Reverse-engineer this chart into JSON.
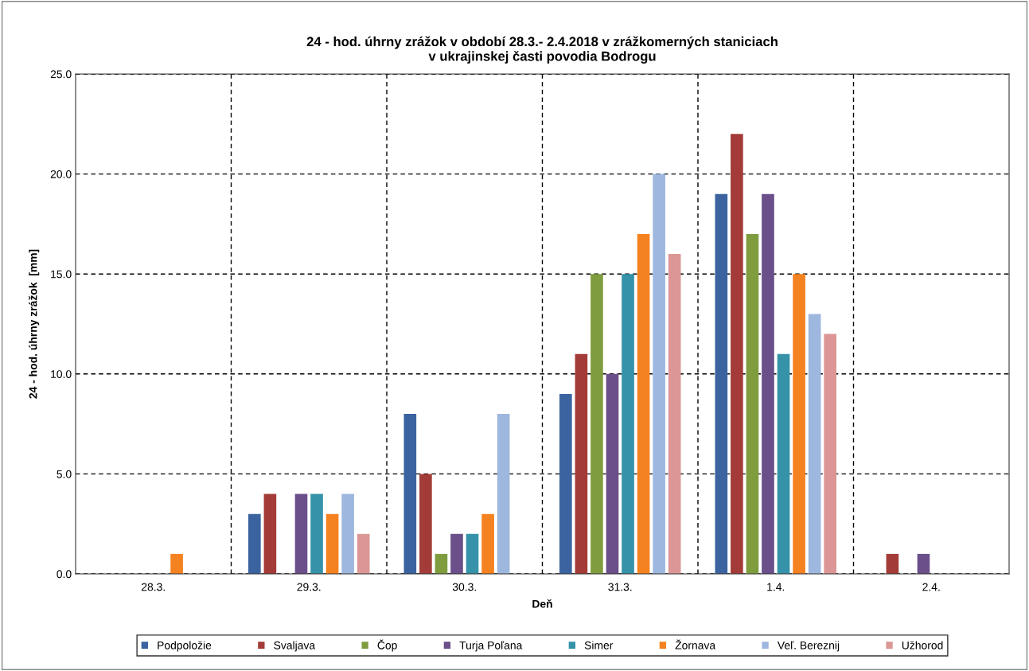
{
  "chart_data": {
    "type": "bar",
    "title": "24 - hod. úhrny zrážok v období 28.3.- 2.4.2018 v zrážkomerných staniciach\nv ukrajinskej časti povodia Bodrogu",
    "xlabel": "Deň",
    "ylabel": "24 - hod. úhrny zrážok  [mm]",
    "categories": [
      "28.3.",
      "29.3.",
      "30.3.",
      "31.3.",
      "1.4.",
      "2.4."
    ],
    "series": [
      {
        "name": "Podpoložie",
        "color": "#3a63a0",
        "values": [
          0,
          3,
          8,
          9,
          19,
          0
        ]
      },
      {
        "name": "Svaljava",
        "color": "#a33c38",
        "values": [
          0,
          4,
          5,
          11,
          22,
          1
        ]
      },
      {
        "name": "Čop",
        "color": "#7f9c3f",
        "values": [
          0,
          0,
          1,
          15,
          17,
          0
        ]
      },
      {
        "name": "Turja Poľana",
        "color": "#6a4f8a",
        "values": [
          0,
          4,
          2,
          10,
          19,
          1
        ]
      },
      {
        "name": "Simer",
        "color": "#3592a8",
        "values": [
          0,
          4,
          2,
          15,
          11,
          0
        ]
      },
      {
        "name": "Žornava",
        "color": "#f58220",
        "values": [
          1,
          3,
          3,
          17,
          15,
          0
        ]
      },
      {
        "name": "Veľ. Bereznij",
        "color": "#9db7de",
        "values": [
          0,
          4,
          8,
          20,
          13,
          0
        ]
      },
      {
        "name": "Užhorod",
        "color": "#db9695",
        "values": [
          0,
          2,
          0,
          16,
          12,
          0
        ]
      }
    ],
    "ylim": [
      0,
      25
    ],
    "yticks": [
      {
        "value": 0,
        "label": "0.0"
      },
      {
        "value": 5,
        "label": "5.0"
      },
      {
        "value": 10,
        "label": "10.0"
      },
      {
        "value": 15,
        "label": "15.0"
      },
      {
        "value": 20,
        "label": "20.0"
      },
      {
        "value": 25,
        "label": "25.0"
      }
    ],
    "grid": true,
    "line_style": "dashed",
    "legend": "bottom"
  }
}
